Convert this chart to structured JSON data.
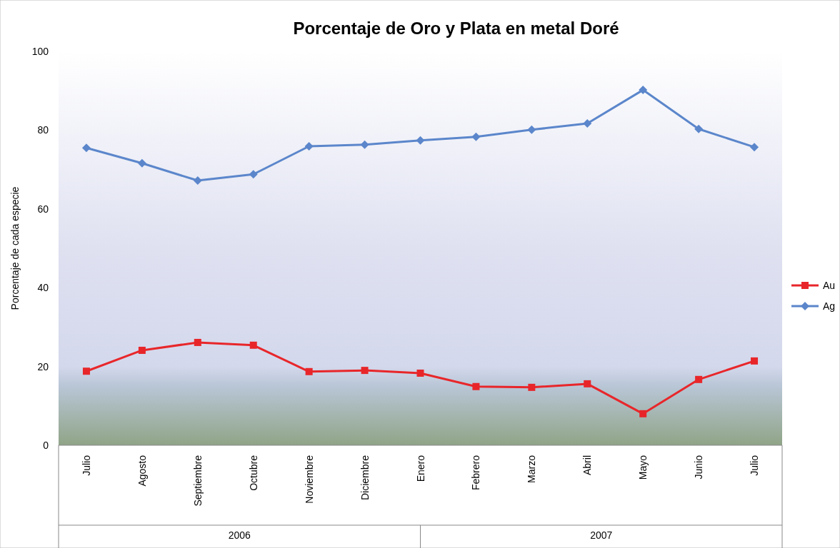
{
  "chart_data": {
    "type": "line",
    "title": "Porcentaje de Oro y Plata en metal Doré",
    "ylabel": "Porcentaje  de  cada  especie",
    "categories": [
      "Julio",
      "Agosto",
      "Septiembre",
      "Octubre",
      "Noviembre",
      "Diciembre",
      "Enero",
      "Febrero",
      "Marzo",
      "Abril",
      "Mayo",
      "Junio",
      "Julio"
    ],
    "series": [
      {
        "name": "Au",
        "color": "#e8262a",
        "marker": "square",
        "values": [
          18.8,
          24.1,
          26.1,
          25.4,
          18.7,
          19.0,
          18.3,
          14.9,
          14.7,
          15.6,
          8.0,
          16.7,
          21.4
        ]
      },
      {
        "name": "Ag",
        "color": "#5b86cb",
        "marker": "diamond",
        "values": [
          75.5,
          71.6,
          67.2,
          68.8,
          75.9,
          76.3,
          77.4,
          78.3,
          80.1,
          81.7,
          90.2,
          80.3,
          75.7
        ]
      }
    ],
    "annotations": [
      "2006",
      "2007"
    ],
    "ylim": [
      0,
      100
    ],
    "yticks": [
      0,
      20,
      40,
      60,
      80,
      100
    ],
    "grid": false,
    "legend": "right",
    "line_style": "solid"
  }
}
